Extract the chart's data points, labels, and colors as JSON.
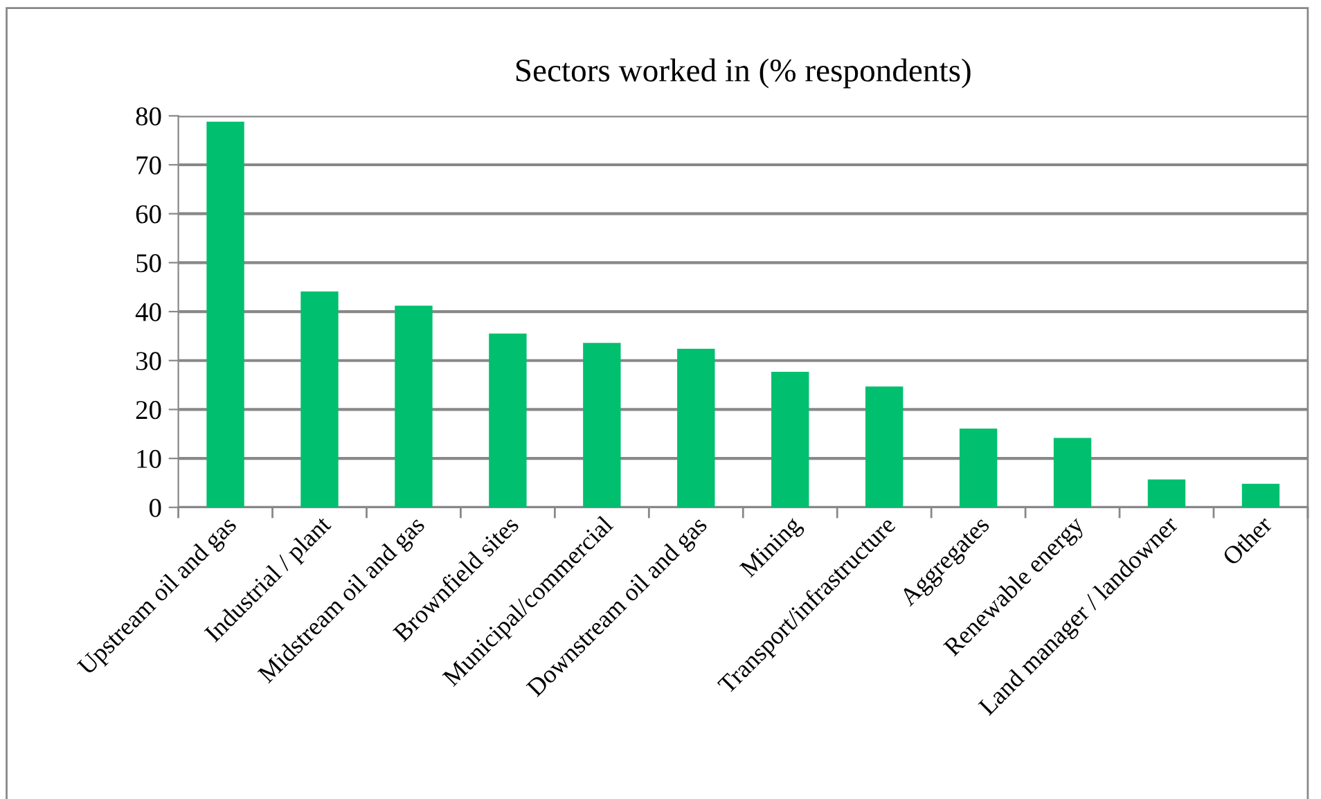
{
  "chart_data": {
    "type": "bar",
    "title": "Sectors worked in (% respondents)",
    "categories": [
      "Upstream oil and gas",
      "Industrial / plant",
      "Midstream oil and gas",
      "Brownfield sites",
      "Municipal/commercial",
      "Downstream oil and gas",
      "Mining",
      "Transport/infrastructure",
      "Aggregates",
      "Renewable energy",
      "Land manager / landowner",
      "Other"
    ],
    "values": [
      78.8,
      44.1,
      41.2,
      35.5,
      33.6,
      32.4,
      27.7,
      24.7,
      16.1,
      14.2,
      5.7,
      4.8
    ],
    "color": "#00bf6f",
    "ylim": [
      0,
      80
    ],
    "yticks": [
      0,
      10,
      20,
      30,
      40,
      50,
      60,
      70,
      80
    ],
    "grid": "y"
  }
}
